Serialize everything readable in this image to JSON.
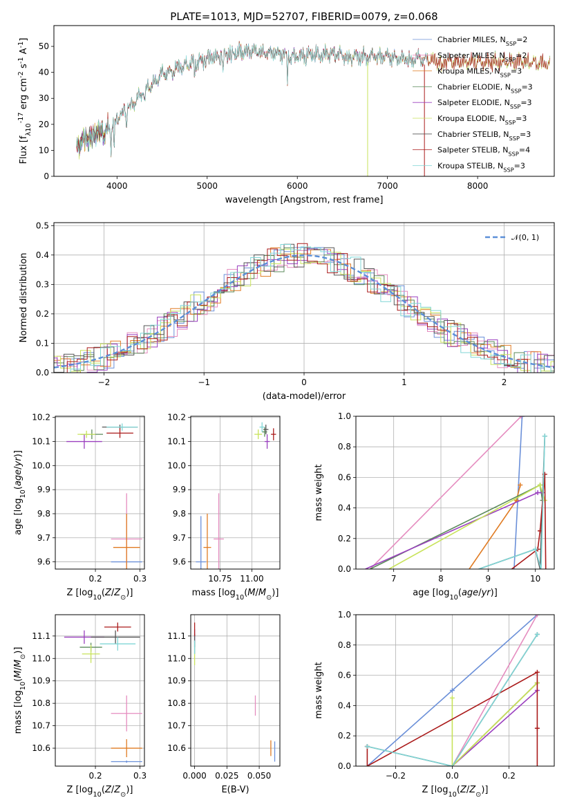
{
  "title": "PLATE=1013, MJD=52707, FIBERID=0079, z=0.068",
  "colors": {
    "chabrier_miles": "#6a8fd8",
    "salpeter_miles": "#e58cbf",
    "kroupa_miles": "#e07b22",
    "chabrier_elodie": "#5a8a5a",
    "salpeter_elodie": "#9a3fbf",
    "kroupa_elodie": "#c8e35a",
    "chabrier_stelib": "#555555",
    "salpeter_stelib": "#aa1a1a",
    "kroupa_stelib": "#7fd6d6",
    "normal": "#5b8fd8"
  },
  "chart_data": [
    {
      "id": "spectrum",
      "type": "line",
      "xlabel": "wavelength [Angstrom, rest frame]",
      "ylabel": "Flux [f_λ10^-17 erg cm^-2 s^-1 A^-1]",
      "xlim": [
        3300,
        8850
      ],
      "ylim": [
        0,
        58
      ],
      "xticks": [
        4000,
        5000,
        6000,
        7000,
        8000
      ],
      "yticks": [
        0,
        10,
        20,
        30,
        40,
        50
      ],
      "grid": false,
      "legend_position": "upper-right",
      "legend": [
        {
          "key": "chabrier_miles",
          "label": "Chabrier MILES, N_SSP=2"
        },
        {
          "key": "salpeter_miles",
          "label": "Salpeter MILES, N_SSP=2"
        },
        {
          "key": "kroupa_miles",
          "label": "Kroupa MILES, N_SSP=3"
        },
        {
          "key": "chabrier_elodie",
          "label": "Chabrier ELODIE, N_SSP=3"
        },
        {
          "key": "salpeter_elodie",
          "label": "Salpeter ELODIE, N_SSP=3"
        },
        {
          "key": "kroupa_elodie",
          "label": "Kroupa ELODIE, N_SSP=3"
        },
        {
          "key": "chabrier_stelib",
          "label": "Chabrier STELIB, N_SSP=3"
        },
        {
          "key": "salpeter_stelib",
          "label": "Salpeter STELIB, N_SSP=4"
        },
        {
          "key": "kroupa_stelib",
          "label": "Kroupa STELIB, N_SSP=3"
        }
      ],
      "continuum": {
        "x": [
          3550,
          3700,
          3800,
          3900,
          3950,
          4050,
          4150,
          4250,
          4350,
          4500,
          4700,
          4900,
          5000,
          5200,
          5400,
          5600,
          5800,
          6000,
          6200,
          6400,
          6600,
          6800,
          7000,
          7200,
          7400,
          7600,
          7800,
          8000,
          8200,
          8400,
          8600,
          8800
        ],
        "y": [
          12,
          15,
          17,
          18,
          20,
          24,
          27,
          31,
          34,
          39,
          42,
          44,
          45,
          47,
          48,
          48,
          47,
          46,
          47,
          47,
          46,
          46,
          46,
          45,
          45,
          44,
          44,
          44,
          44,
          44,
          44,
          43
        ]
      }
    },
    {
      "id": "residuals",
      "type": "histogram",
      "xlabel": "(data-model)/error",
      "ylabel": "Normed distribution",
      "xlim": [
        -2.5,
        2.5
      ],
      "ylim": [
        0,
        0.51
      ],
      "xticks": [
        -2,
        -1,
        0,
        1,
        2
      ],
      "yticks": [
        0.0,
        0.1,
        0.2,
        0.3,
        0.4,
        0.5
      ],
      "grid": true,
      "legend_position": "upper-right",
      "legend": [
        {
          "key": "normal",
          "label": "𝒩(0, 1)"
        }
      ]
    },
    {
      "id": "age_vs_Z",
      "type": "errorbar",
      "xlabel": "Z [log10(Z/Z⊙)]",
      "ylabel": "age [log10(age/yr)]",
      "xlim": [
        0.11,
        0.31
      ],
      "ylim": [
        9.57,
        10.205
      ],
      "xticks": [
        0.2,
        0.3
      ],
      "yticks": [
        9.6,
        9.7,
        9.8,
        9.9,
        10.0,
        10.1,
        10.2
      ],
      "grid": true,
      "points": [
        {
          "key": "chabrier_miles",
          "x": 0.27,
          "xerr": 0.035,
          "y": 9.6,
          "yerr": 0.005
        },
        {
          "key": "salpeter_miles",
          "x": 0.27,
          "xerr": 0.035,
          "y": 9.695,
          "yerr": 0.19
        },
        {
          "key": "kroupa_miles",
          "x": 0.27,
          "xerr": 0.03,
          "y": 9.66,
          "yerr": 0.14
        },
        {
          "key": "chabrier_elodie",
          "x": 0.192,
          "xerr": 0.025,
          "y": 10.13,
          "yerr": 0.02
        },
        {
          "key": "salpeter_elodie",
          "x": 0.175,
          "xerr": 0.04,
          "y": 10.1,
          "yerr": 0.03
        },
        {
          "key": "kroupa_elodie",
          "x": 0.18,
          "xerr": 0.02,
          "y": 10.13,
          "yerr": 0.015
        },
        {
          "key": "chabrier_stelib",
          "x": 0.255,
          "xerr": 0.04,
          "y": 10.16,
          "yerr": 0.01
        },
        {
          "key": "salpeter_stelib",
          "x": 0.255,
          "xerr": 0.03,
          "y": 10.135,
          "yerr": 0.02
        },
        {
          "key": "kroupa_stelib",
          "x": 0.26,
          "xerr": 0.035,
          "y": 10.16,
          "yerr": 0.015
        }
      ]
    },
    {
      "id": "age_vs_mass",
      "type": "errorbar",
      "xlabel": "mass [log10(M/M⊙)]",
      "ylabel": "",
      "xlim": [
        10.52,
        11.22
      ],
      "ylim": [
        9.57,
        10.205
      ],
      "xticks": [
        10.75,
        11.0
      ],
      "yticks": [
        9.6,
        9.7,
        9.8,
        9.9,
        10.0,
        10.1,
        10.2
      ],
      "grid": true,
      "points": [
        {
          "key": "chabrier_miles",
          "x": 10.6,
          "xerr": 0.04,
          "y": 9.6,
          "yerr": 0.19
        },
        {
          "key": "salpeter_miles",
          "x": 10.74,
          "xerr": 0.04,
          "y": 9.695,
          "yerr": 0.19
        },
        {
          "key": "kroupa_miles",
          "x": 10.65,
          "xerr": 0.03,
          "y": 9.66,
          "yerr": 0.14
        },
        {
          "key": "chabrier_elodie",
          "x": 11.1,
          "xerr": 0.02,
          "y": 10.14,
          "yerr": 0.02
        },
        {
          "key": "salpeter_elodie",
          "x": 11.12,
          "xerr": 0.02,
          "y": 10.1,
          "yerr": 0.03
        },
        {
          "key": "kroupa_elodie",
          "x": 11.05,
          "xerr": 0.03,
          "y": 10.13,
          "yerr": 0.02
        },
        {
          "key": "chabrier_stelib",
          "x": 11.11,
          "xerr": 0.02,
          "y": 10.15,
          "yerr": 0.02
        },
        {
          "key": "salpeter_stelib",
          "x": 11.17,
          "xerr": 0.02,
          "y": 10.13,
          "yerr": 0.025
        },
        {
          "key": "kroupa_stelib",
          "x": 11.08,
          "xerr": 0.02,
          "y": 10.16,
          "yerr": 0.02
        }
      ]
    },
    {
      "id": "weight_vs_age",
      "type": "line",
      "xlabel": "age [log10(age/yr)]",
      "ylabel": "mass weight",
      "xlim": [
        6.2,
        10.4
      ],
      "ylim": [
        0,
        1.0
      ],
      "xticks": [
        7,
        8,
        9,
        10
      ],
      "yticks": [
        0.0,
        0.2,
        0.4,
        0.6,
        0.8,
        1.0
      ],
      "grid": true,
      "series": [
        {
          "key": "chabrier_miles",
          "x": [
            9.48,
            9.55,
            9.72
          ],
          "y": [
            0.0,
            0.0,
            1.0
          ]
        },
        {
          "key": "salpeter_miles",
          "x": [
            6.5,
            9.7
          ],
          "y": [
            0.0,
            1.0
          ]
        },
        {
          "key": "kroupa_miles",
          "x": [
            8.6,
            9.6,
            9.68
          ],
          "y": [
            0.0,
            0.45,
            0.55
          ]
        },
        {
          "key": "chabrier_elodie",
          "x": [
            6.5,
            10.1,
            10.15
          ],
          "y": [
            0.0,
            0.55,
            0.45
          ]
        },
        {
          "key": "salpeter_elodie",
          "x": [
            6.4,
            10.05,
            10.15
          ],
          "y": [
            0.0,
            0.5,
            0.5
          ]
        },
        {
          "key": "kroupa_elodie",
          "x": [
            6.9,
            10.1,
            10.2
          ],
          "y": [
            0.0,
            0.55,
            0.45
          ]
        },
        {
          "key": "chabrier_stelib",
          "x": [
            8.8,
            10.0,
            10.1,
            10.2
          ],
          "y": [
            0.0,
            0.13,
            0.0,
            0.87
          ]
        },
        {
          "key": "salpeter_stelib",
          "x": [
            9.5,
            10.05,
            10.1,
            10.2,
            10.22
          ],
          "y": [
            0.0,
            0.13,
            0.25,
            0.62,
            0.0
          ]
        },
        {
          "key": "kroupa_stelib",
          "x": [
            8.8,
            10.0,
            10.12,
            10.2
          ],
          "y": [
            0.0,
            0.13,
            0.0,
            0.87
          ]
        }
      ]
    },
    {
      "id": "mass_vs_Z",
      "type": "errorbar",
      "xlabel": "Z [log10(Z/Z⊙)]",
      "ylabel": "mass [log10(M/M⊙)]",
      "xlim": [
        0.11,
        0.31
      ],
      "ylim": [
        10.52,
        11.195
      ],
      "xticks": [
        0.2,
        0.3
      ],
      "yticks": [
        10.6,
        10.7,
        10.8,
        10.9,
        11.0,
        11.1
      ],
      "grid": true,
      "points": [
        {
          "key": "chabrier_miles",
          "x": 0.27,
          "xerr": 0.035,
          "y": 10.54,
          "yerr": 0.005
        },
        {
          "key": "salpeter_miles",
          "x": 0.27,
          "xerr": 0.035,
          "y": 10.755,
          "yerr": 0.08
        },
        {
          "key": "kroupa_miles",
          "x": 0.27,
          "xerr": 0.035,
          "y": 10.6,
          "yerr": 0.04
        },
        {
          "key": "chabrier_elodie",
          "x": 0.19,
          "xerr": 0.025,
          "y": 11.05,
          "yerr": 0.02
        },
        {
          "key": "salpeter_elodie",
          "x": 0.175,
          "xerr": 0.045,
          "y": 11.095,
          "yerr": 0.03
        },
        {
          "key": "kroupa_elodie",
          "x": 0.19,
          "xerr": 0.02,
          "y": 11.02,
          "yerr": 0.04
        },
        {
          "key": "chabrier_stelib",
          "x": 0.245,
          "xerr": 0.055,
          "y": 11.095,
          "yerr": 0.03
        },
        {
          "key": "salpeter_stelib",
          "x": 0.25,
          "xerr": 0.03,
          "y": 11.14,
          "yerr": 0.02
        },
        {
          "key": "kroupa_stelib",
          "x": 0.25,
          "xerr": 0.04,
          "y": 11.065,
          "yerr": 0.03
        }
      ]
    },
    {
      "id": "mass_vs_ebv",
      "type": "errorbar",
      "xlabel": "E(B-V)",
      "ylabel": "",
      "xlim": [
        -0.003,
        0.066
      ],
      "ylim": [
        10.52,
        11.195
      ],
      "xticks": [
        0.0,
        0.025,
        0.05
      ],
      "yticks": [
        10.6,
        10.7,
        10.8,
        10.9,
        11.0,
        11.1
      ],
      "grid": true,
      "points": [
        {
          "key": "chabrier_miles",
          "x": 0.062,
          "xerr": 0.0,
          "y": 10.585,
          "yerr": 0.045
        },
        {
          "key": "salpeter_miles",
          "x": 0.047,
          "xerr": 0.0,
          "y": 10.79,
          "yerr": 0.045
        },
        {
          "key": "kroupa_miles",
          "x": 0.059,
          "xerr": 0.0,
          "y": 10.6,
          "yerr": 0.035
        },
        {
          "key": "chabrier_elodie",
          "x": 0.0,
          "xerr": 0.0,
          "y": 11.05,
          "yerr": 0.03
        },
        {
          "key": "salpeter_elodie",
          "x": 0.0,
          "xerr": 0.0,
          "y": 11.1,
          "yerr": 0.03
        },
        {
          "key": "kroupa_elodie",
          "x": 0.0,
          "xerr": 0.0,
          "y": 11.0,
          "yerr": 0.03
        },
        {
          "key": "chabrier_stelib",
          "x": 0.0,
          "xerr": 0.0,
          "y": 11.08,
          "yerr": 0.03
        },
        {
          "key": "salpeter_stelib",
          "x": 0.0,
          "xerr": 0.0,
          "y": 11.13,
          "yerr": 0.03
        },
        {
          "key": "kroupa_stelib",
          "x": 0.0,
          "xerr": 0.0,
          "y": 11.05,
          "yerr": 0.03
        }
      ]
    },
    {
      "id": "weight_vs_Z",
      "type": "line",
      "xlabel": "Z [log10(Z/Z⊙)]",
      "ylabel": "mass weight",
      "xlim": [
        -0.34,
        0.36
      ],
      "ylim": [
        0,
        1.0
      ],
      "xticks": [
        -0.2,
        0.0,
        0.2
      ],
      "yticks": [
        0.0,
        0.2,
        0.4,
        0.6,
        0.8,
        1.0
      ],
      "grid": true,
      "series": [
        {
          "key": "chabrier_miles",
          "x": [
            -0.3,
            0.0,
            0.3
          ],
          "y": [
            0.0,
            0.5,
            1.0
          ]
        },
        {
          "key": "salpeter_miles",
          "x": [
            0.0,
            0.3
          ],
          "y": [
            0.0,
            1.0
          ]
        },
        {
          "key": "kroupa_miles",
          "x": [
            0.0,
            0.3
          ],
          "y": [
            0.0,
            0.55
          ]
        },
        {
          "key": "chabrier_elodie",
          "x": [
            0.0,
            0.3
          ],
          "y": [
            0.0,
            0.55
          ]
        },
        {
          "key": "salpeter_elodie",
          "x": [
            0.0,
            0.3
          ],
          "y": [
            0.0,
            0.5
          ]
        },
        {
          "key": "kroupa_elodie",
          "x": [
            0.0,
            0.0,
            0.3
          ],
          "y": [
            0.45,
            0.0,
            0.55
          ]
        },
        {
          "key": "chabrier_stelib",
          "x": [
            -0.3,
            0.0,
            0.3
          ],
          "y": [
            0.13,
            0.0,
            0.87
          ]
        },
        {
          "key": "salpeter_stelib",
          "x": [
            -0.3,
            -0.3,
            0.3,
            0.3,
            0.3
          ],
          "y": [
            0.13,
            0.0,
            0.62,
            0.25,
            0.0
          ]
        },
        {
          "key": "kroupa_stelib",
          "x": [
            -0.3,
            0.0,
            0.3
          ],
          "y": [
            0.13,
            0.0,
            0.87
          ]
        }
      ]
    }
  ]
}
